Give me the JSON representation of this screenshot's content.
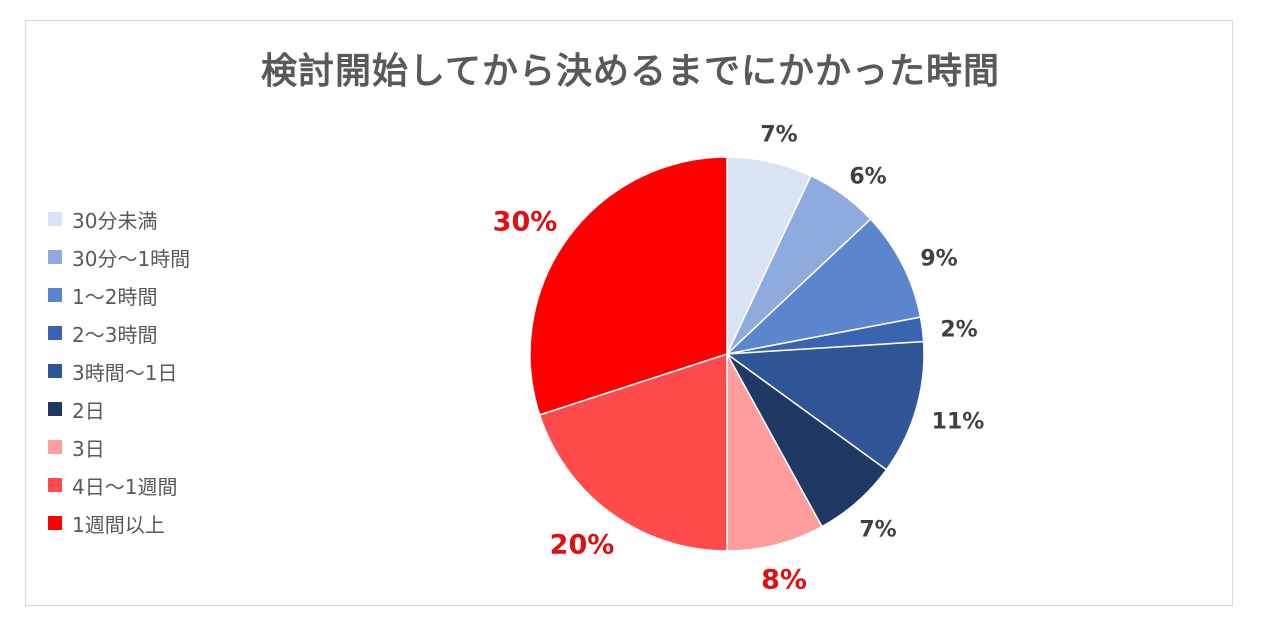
{
  "chart_data": {
    "type": "pie",
    "title": "検討開始してから決めるまでにかかった時間",
    "legend_position": "left",
    "slices": [
      {
        "name": "30分未満",
        "value": 7,
        "label": "7%",
        "color": "#dae3f3",
        "label_color": "#404040"
      },
      {
        "name": "30分〜1時間",
        "value": 6,
        "label": "6%",
        "color": "#8faadc",
        "label_color": "#404040"
      },
      {
        "name": "1〜2時間",
        "value": 9,
        "label": "9%",
        "color": "#5b85cc",
        "label_color": "#404040"
      },
      {
        "name": "2〜3時間",
        "value": 2,
        "label": "2%",
        "color": "#3a63b2",
        "label_color": "#404040"
      },
      {
        "name": "3時間〜1日",
        "value": 11,
        "label": "11%",
        "color": "#2f5597",
        "label_color": "#404040"
      },
      {
        "name": "2日",
        "value": 7,
        "label": "7%",
        "color": "#203864",
        "label_color": "#404040"
      },
      {
        "name": "3日",
        "value": 8,
        "label": "8%",
        "color": "#ff9d9d",
        "label_color": "#e01010"
      },
      {
        "name": "4日〜1週間",
        "value": 20,
        "label": "20%",
        "color": "#ff4b4b",
        "label_color": "#e01010"
      },
      {
        "name": "1週間以上",
        "value": 30,
        "label": "30%",
        "color": "#ff0000",
        "label_color": "#e01010"
      }
    ]
  }
}
